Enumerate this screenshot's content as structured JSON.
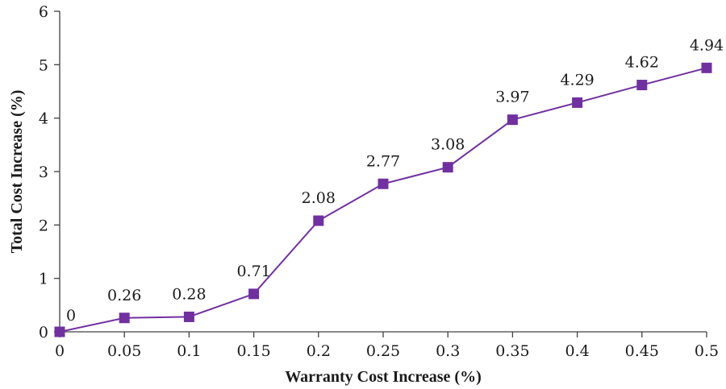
{
  "chart_data": {
    "type": "line",
    "title": "",
    "xlabel": "Warranty Cost Increase (%)",
    "ylabel": "Total Cost Increase (%)",
    "x": [
      0,
      0.05,
      0.1,
      0.15,
      0.2,
      0.25,
      0.3,
      0.35,
      0.4,
      0.45,
      0.5
    ],
    "x_tick_labels": [
      "0",
      "0.05",
      "0.1",
      "0.15",
      "0.2",
      "0.25",
      "0.3",
      "0.35",
      "0.4",
      "0.45",
      "0.5"
    ],
    "y_tick_labels": [
      "0",
      "1",
      "2",
      "3",
      "4",
      "5",
      "6"
    ],
    "xlim": [
      0,
      0.5
    ],
    "ylim": [
      0,
      6
    ],
    "grid": false,
    "legend": "none",
    "series": [
      {
        "values": [
          0,
          0.26,
          0.28,
          0.71,
          2.08,
          2.77,
          3.08,
          3.97,
          4.29,
          4.62,
          4.94
        ],
        "data_labels": [
          "0",
          "0.26",
          "0.28",
          "0.71",
          "2.08",
          "2.77",
          "3.08",
          "3.97",
          "4.29",
          "4.62",
          "4.94"
        ],
        "color": "#7030a0",
        "marker": "square"
      }
    ]
  }
}
